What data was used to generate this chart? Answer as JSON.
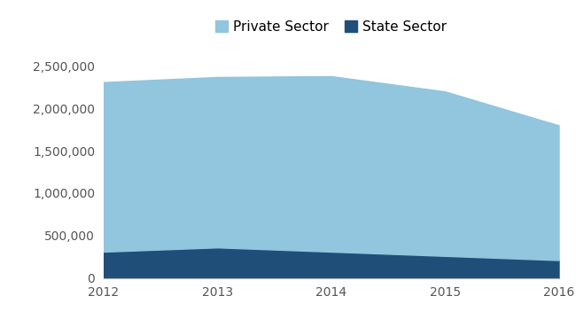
{
  "years": [
    2012,
    2013,
    2014,
    2015,
    2016
  ],
  "state_sector": [
    310000,
    360000,
    310000,
    260000,
    210000
  ],
  "private_sector": [
    2000000,
    2010000,
    2070000,
    1940000,
    1590000
  ],
  "private_color": "#92c5de",
  "state_color": "#1f4e79",
  "legend_labels": [
    "Private Sector",
    "State Sector"
  ],
  "ylim": [
    0,
    2700000
  ],
  "yticks": [
    0,
    500000,
    1000000,
    1500000,
    2000000,
    2500000
  ],
  "background_color": "#ffffff",
  "tick_color": "#555555",
  "tick_fontsize": 10,
  "legend_fontsize": 11
}
